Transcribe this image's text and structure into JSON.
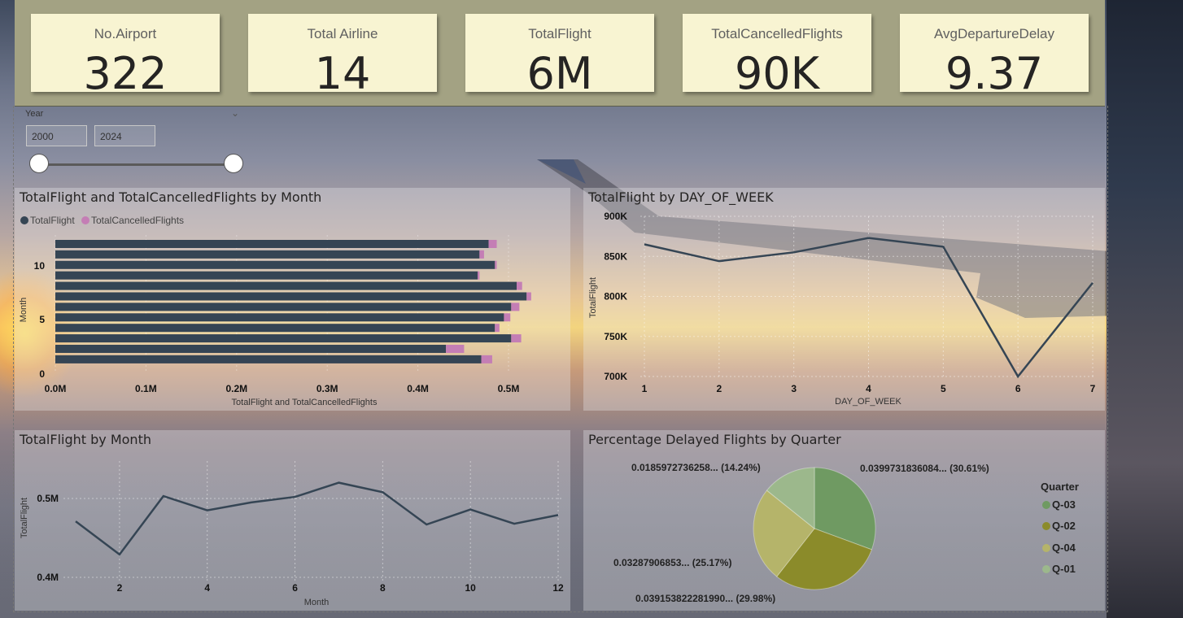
{
  "kpis": [
    {
      "title": "No.Airport",
      "value": "322"
    },
    {
      "title": "Total Airline",
      "value": "14"
    },
    {
      "title": "TotalFlight",
      "value": "6M"
    },
    {
      "title": "TotalCancelledFlights",
      "value": "90K"
    },
    {
      "title": "AvgDepartureDelay",
      "value": "9.37"
    }
  ],
  "slicer": {
    "title": "Year",
    "from_value": "2000",
    "to_value": "2024",
    "range": [
      2000,
      2024
    ],
    "selected": [
      2000,
      2024
    ]
  },
  "colors": {
    "series_dark": "#354554",
    "series_cancel": "#c47eb5",
    "q03": "#6f9a62",
    "q02": "#8b8b2a",
    "q04": "#b5b46a",
    "q01": "#9cb88c"
  },
  "chart_data": [
    {
      "type": "bar",
      "orientation": "horizontal",
      "stacked": true,
      "title": "TotalFlight and TotalCancelledFlights by Month",
      "xlabel": "TotalFlight and TotalCancelledFlights",
      "ylabel": "Month",
      "xlim": [
        0,
        0.55
      ],
      "x_ticks": [
        "0.0M",
        "0.1M",
        "0.2M",
        "0.3M",
        "0.4M",
        "0.5M"
      ],
      "x_tick_values": [
        0,
        0.1,
        0.2,
        0.3,
        0.4,
        0.5
      ],
      "y_ticks": [
        "0",
        "5",
        "10"
      ],
      "legend_position": "top-left",
      "categories": [
        12,
        11,
        10,
        9,
        8,
        7,
        6,
        5,
        4,
        3,
        2,
        1
      ],
      "series": [
        {
          "name": "TotalFlight",
          "values": [
            0.478,
            0.468,
            0.485,
            0.466,
            0.509,
            0.52,
            0.503,
            0.495,
            0.485,
            0.503,
            0.431,
            0.47
          ]
        },
        {
          "name": "TotalCancelledFlights",
          "values": [
            0.009,
            0.005,
            0.002,
            0.002,
            0.006,
            0.005,
            0.009,
            0.007,
            0.005,
            0.011,
            0.02,
            0.012
          ]
        }
      ]
    },
    {
      "type": "line",
      "title": "TotalFlight by DAY_OF_WEEK",
      "xlabel": "DAY_OF_WEEK",
      "ylabel": "TotalFlight",
      "ylim": [
        700000,
        900000
      ],
      "y_ticks": [
        "700K",
        "750K",
        "800K",
        "850K",
        "900K"
      ],
      "y_tick_values": [
        700000,
        750000,
        800000,
        850000,
        900000
      ],
      "x_ticks": [
        "1",
        "2",
        "3",
        "4",
        "5",
        "6",
        "7"
      ],
      "x": [
        1,
        2,
        3,
        4,
        5,
        6,
        7
      ],
      "series": [
        {
          "values": [
            865000,
            844000,
            855000,
            873000,
            862000,
            700000,
            817000
          ]
        }
      ],
      "grid": true
    },
    {
      "type": "line",
      "title": "TotalFlight by Month",
      "xlabel": "Month",
      "ylabel": "TotalFlight",
      "ylim": [
        0.4,
        0.52
      ],
      "y_ticks": [
        "0.4M",
        "0.5M"
      ],
      "y_tick_values": [
        0.4,
        0.5
      ],
      "x_ticks": [
        "2",
        "4",
        "6",
        "8",
        "10",
        "12"
      ],
      "x_tick_values": [
        2,
        4,
        6,
        8,
        10,
        12
      ],
      "x": [
        1,
        2,
        3,
        4,
        5,
        6,
        7,
        8,
        9,
        10,
        11,
        12
      ],
      "series": [
        {
          "values": [
            0.471,
            0.429,
            0.503,
            0.485,
            0.495,
            0.502,
            0.52,
            0.508,
            0.467,
            0.486,
            0.468,
            0.479
          ]
        }
      ],
      "grid": true
    },
    {
      "type": "pie",
      "title": "Percentage Delayed Flights by Quarter",
      "legend_title": "Quarter",
      "legend_position": "right",
      "slices": [
        {
          "name": "Q-03",
          "value": 30.61,
          "label": "0.0399731836084... (30.61%)",
          "color_key": "q03"
        },
        {
          "name": "Q-02",
          "value": 29.98,
          "label": "0.039153822281990... (29.98%)",
          "color_key": "q02"
        },
        {
          "name": "Q-04",
          "value": 25.17,
          "label": "0.03287906853... (25.17%)",
          "color_key": "q04"
        },
        {
          "name": "Q-01",
          "value": 14.24,
          "label": "0.0185972736258... (14.24%)",
          "color_key": "q01"
        }
      ]
    }
  ]
}
